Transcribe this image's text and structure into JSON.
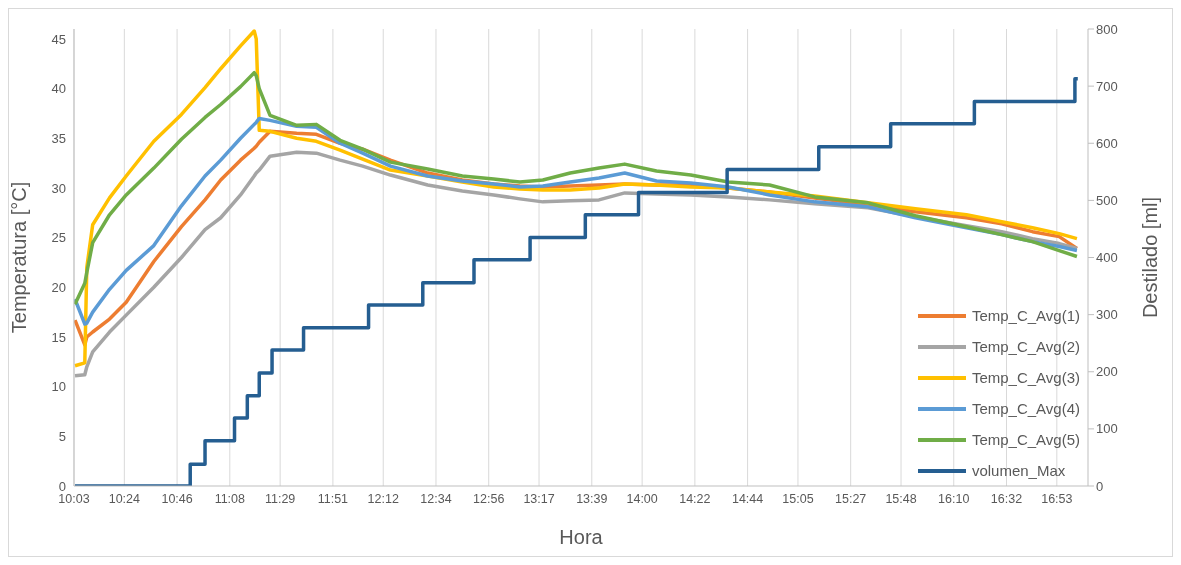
{
  "chart_data": {
    "type": "line",
    "xlabel": "Hora",
    "ylabel": "Temperatura [°C]",
    "y2label": "Destilado [ml]",
    "x": [
      10.057,
      10.125,
      10.139,
      10.18,
      10.297,
      10.413,
      10.605,
      10.797,
      10.961,
      11.07,
      11.208,
      11.303,
      11.317,
      11.338,
      11.413,
      11.598,
      11.735,
      11.9,
      12.057,
      12.25,
      12.509,
      12.75,
      12.968,
      13.15,
      13.31,
      13.5,
      13.7,
      13.879,
      14.1,
      14.338,
      14.6,
      14.886,
      15.2,
      15.571,
      15.9,
      16.255,
      16.5,
      16.714,
      16.9,
      17.023
    ],
    "series": [
      {
        "name": "Temp_C_Avg(1)",
        "color": "#ed7d31",
        "values": [
          16.7,
          14.2,
          15.0,
          15.5,
          16.8,
          18.5,
          22.6,
          26.1,
          28.8,
          30.8,
          32.8,
          34.0,
          34.2,
          34.6,
          35.7,
          35.5,
          35.4,
          34.5,
          33.9,
          32.8,
          31.5,
          30.8,
          30.4,
          30.2,
          30.1,
          30.2,
          30.3,
          30.4,
          30.3,
          30.3,
          30.0,
          29.6,
          29.0,
          28.3,
          27.6,
          27.0,
          26.4,
          25.6,
          25.1,
          23.9
        ]
      },
      {
        "name": "Temp_C_Avg(2)",
        "color": "#a5a5a5",
        "values": [
          11.1,
          11.2,
          12.0,
          13.5,
          15.5,
          17.2,
          20.0,
          23.0,
          25.8,
          27.0,
          29.3,
          31.2,
          31.5,
          31.8,
          33.2,
          33.6,
          33.5,
          32.8,
          32.2,
          31.3,
          30.3,
          29.7,
          29.3,
          28.9,
          28.6,
          28.7,
          28.8,
          29.5,
          29.4,
          29.3,
          29.1,
          28.8,
          28.4,
          28.0,
          27.1,
          26.2,
          25.6,
          24.9,
          24.4,
          23.9
        ]
      },
      {
        "name": "Temp_C_Avg(3)",
        "color": "#ffc000",
        "values": [
          12.1,
          12.4,
          22.0,
          26.3,
          29.0,
          31.2,
          34.7,
          37.4,
          40.1,
          42.0,
          44.3,
          45.8,
          45.0,
          35.8,
          35.7,
          35.0,
          34.7,
          33.8,
          32.9,
          31.8,
          31.2,
          30.6,
          30.1,
          29.9,
          29.8,
          29.8,
          30.0,
          30.4,
          30.3,
          30.1,
          30.0,
          29.6,
          29.2,
          28.5,
          27.9,
          27.3,
          26.6,
          26.0,
          25.4,
          24.9
        ]
      },
      {
        "name": "Temp_C_Avg(4)",
        "color": "#5b9bd5",
        "values": [
          18.8,
          16.3,
          16.4,
          17.5,
          19.8,
          21.7,
          24.2,
          28.2,
          31.2,
          32.8,
          35.0,
          36.4,
          36.6,
          37.0,
          36.8,
          36.2,
          36.1,
          34.5,
          33.5,
          32.2,
          31.2,
          30.7,
          30.4,
          30.1,
          30.2,
          30.6,
          31.0,
          31.5,
          30.7,
          30.5,
          30.1,
          29.3,
          28.6,
          28.1,
          27.0,
          26.0,
          25.3,
          24.6,
          24.1,
          23.7
        ]
      },
      {
        "name": "Temp_C_Avg(5)",
        "color": "#70ad47",
        "values": [
          18.3,
          20.4,
          21.5,
          24.5,
          27.3,
          29.3,
          32.0,
          34.9,
          37.1,
          38.4,
          40.2,
          41.6,
          41.3,
          40.0,
          37.3,
          36.3,
          36.4,
          34.8,
          33.9,
          32.6,
          31.9,
          31.2,
          30.9,
          30.6,
          30.8,
          31.5,
          32.0,
          32.4,
          31.7,
          31.3,
          30.6,
          30.3,
          29.1,
          28.5,
          27.2,
          26.1,
          25.3,
          24.6,
          23.7,
          23.1
        ]
      },
      {
        "name": "volumen_Max",
        "type": "step",
        "axis": "y2",
        "color": "#255e91",
        "x": [
          10.057,
          10.858,
          10.961,
          11.166,
          11.255,
          11.338,
          11.427,
          11.646,
          12.098,
          12.475,
          12.831,
          13.221,
          13.605,
          13.975,
          14.591,
          15.228,
          15.728,
          16.31,
          17.009,
          17.029
        ],
        "values": [
          0,
          38,
          79,
          119,
          158,
          198,
          238,
          277,
          317,
          356,
          396,
          435,
          475,
          514,
          554,
          594,
          634,
          673,
          713,
          713
        ]
      }
    ],
    "xlim": [
      10.05,
      17.1
    ],
    "xticks": [
      {
        "value": 10.05,
        "label": "10:03"
      },
      {
        "value": 10.4,
        "label": "10:24"
      },
      {
        "value": 10.7667,
        "label": "10:46"
      },
      {
        "value": 11.1333,
        "label": "11:08"
      },
      {
        "value": 11.4833,
        "label": "11:29"
      },
      {
        "value": 11.85,
        "label": "11:51"
      },
      {
        "value": 12.2,
        "label": "12:12"
      },
      {
        "value": 12.5667,
        "label": "12:34"
      },
      {
        "value": 12.9333,
        "label": "12:56"
      },
      {
        "value": 13.2833,
        "label": "13:17"
      },
      {
        "value": 13.65,
        "label": "13:39"
      },
      {
        "value": 14,
        "label": "14:00"
      },
      {
        "value": 14.3667,
        "label": "14:22"
      },
      {
        "value": 14.7333,
        "label": "14:44"
      },
      {
        "value": 15.0833,
        "label": "15:05"
      },
      {
        "value": 15.45,
        "label": "15:27"
      },
      {
        "value": 15.8,
        "label": "15:48"
      },
      {
        "value": 16.1667,
        "label": "16:10"
      },
      {
        "value": 16.5333,
        "label": "16:32"
      },
      {
        "value": 16.8833,
        "label": "16:53"
      }
    ],
    "ylim": [
      0,
      46
    ],
    "yticks": [
      0,
      5,
      10,
      15,
      20,
      25,
      30,
      35,
      40,
      45
    ],
    "y2lim": [
      0,
      800
    ],
    "y2ticks": [
      0,
      100,
      200,
      300,
      400,
      500,
      600,
      700,
      800
    ],
    "grid": "x",
    "legend": "bottom right"
  }
}
